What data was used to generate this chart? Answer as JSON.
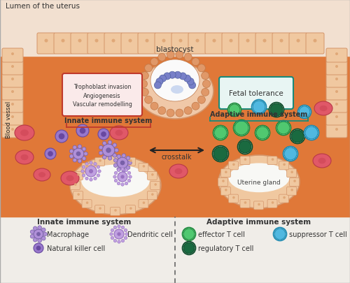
{
  "bg_main": "#E07838",
  "bg_lumen": "#F2E0D0",
  "bg_legend": "#F0EDE8",
  "wall_color": "#F0C8A0",
  "wall_outline": "#D4956A",
  "wall_dot": "#E0A878",
  "blasto_outer_color": "#E8A878",
  "blasto_outer_outline": "#C07848",
  "blasto_inner_color": "#8080CC",
  "blasto_highlight": "#A8B8E8",
  "blasto_cell_color": "#E09868",
  "blasto_cell_outline": "#C07848",
  "implant_color": "#F0C8A8",
  "implant_outline": "#D4956A",
  "innate_box_fill": "#FAEAEA",
  "innate_box_edge": "#C0392B",
  "adaptive_box_fill": "#E8F5F3",
  "adaptive_box_edge": "#1A8A7A",
  "innate_brace_color": "#C0392B",
  "adaptive_brace_color": "#1A8A7A",
  "macrophage_body": "#B090D8",
  "macrophage_dark": "#7860A8",
  "macrophage_nucleus": "#6848A0",
  "nk_body": "#9878CC",
  "nk_dark": "#6848A0",
  "dendritic_body": "#C0A0E0",
  "dendritic_dark": "#9870C0",
  "effector_fill": "#50C870",
  "effector_outline": "#1A8A3A",
  "effector_white": "#FFFFFF",
  "regulatory_fill": "#1A6A40",
  "regulatory_outline": "#0A4A28",
  "suppressor_fill": "#50B8E0",
  "suppressor_outline": "#1888B0",
  "suppressor_white": "#FFFFFF",
  "red_cell_fill": "#E05868",
  "red_cell_outline": "#B83848",
  "red_cell_center": "#C03848",
  "arrow_color": "#222222",
  "text_color": "#333333",
  "lumen_text": "Lumen of the uterus",
  "blastocyst_label": "blastocyst",
  "innate_box_text": "Trophoblast invasion\nAngiogenesis\nVascular remodelling",
  "innate_label": "Innate immune system",
  "adaptive_box_text": "Fetal tolerance",
  "adaptive_label": "Adaptive immune system",
  "crosstalk_text": "crosstalk",
  "blood_vessel_text": "Blood vessel",
  "uterine_gland_text": "Uterine gland",
  "legend_innate": "Innate immune system",
  "legend_adaptive": "Adaptive immune system",
  "legend_macrophage": "Macrophage",
  "legend_nk": "Natural killer cell",
  "legend_dendritic": "Dendritic cell",
  "legend_effector": "effector T cell",
  "legend_regulatory": "regulatory T cell",
  "legend_suppressor": "suppressor T cell"
}
